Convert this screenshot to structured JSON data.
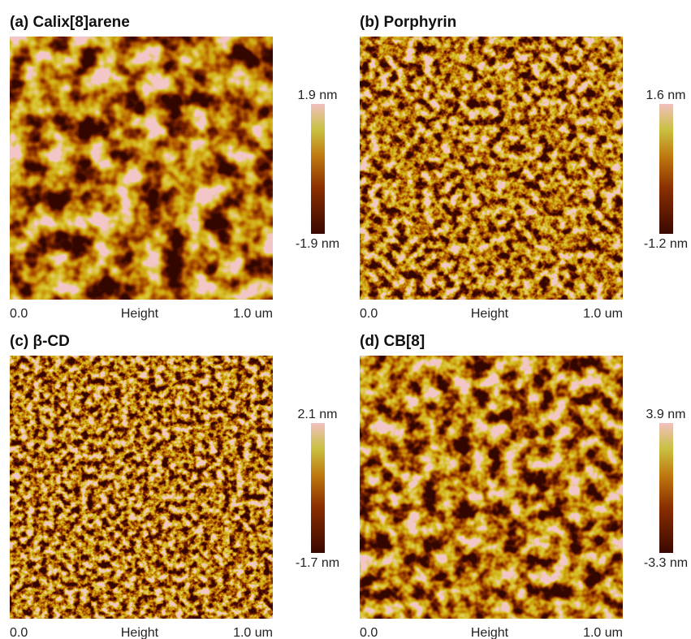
{
  "panels": [
    {
      "title": "(a) Calix[8]arene",
      "scale_max": "1.9 nm",
      "scale_min": "-1.9 nm",
      "x_start": "0.0",
      "x_label": "Height",
      "x_end": "1.0 um"
    },
    {
      "title": "(b) Porphyrin",
      "scale_max": "1.6 nm",
      "scale_min": "-1.2 nm",
      "x_start": "0.0",
      "x_label": "Height",
      "x_end": "1.0 um"
    },
    {
      "title": "(c) β-CD",
      "scale_max": "2.1 nm",
      "scale_min": "-1.7 nm",
      "x_start": "0.0",
      "x_label": "Height",
      "x_end": "1.0 um"
    },
    {
      "title": "(d) CB[8]",
      "scale_max": "3.9 nm",
      "scale_min": "-3.3 nm",
      "x_start": "0.0",
      "x_label": "Height",
      "x_end": "1.0 um"
    }
  ]
}
